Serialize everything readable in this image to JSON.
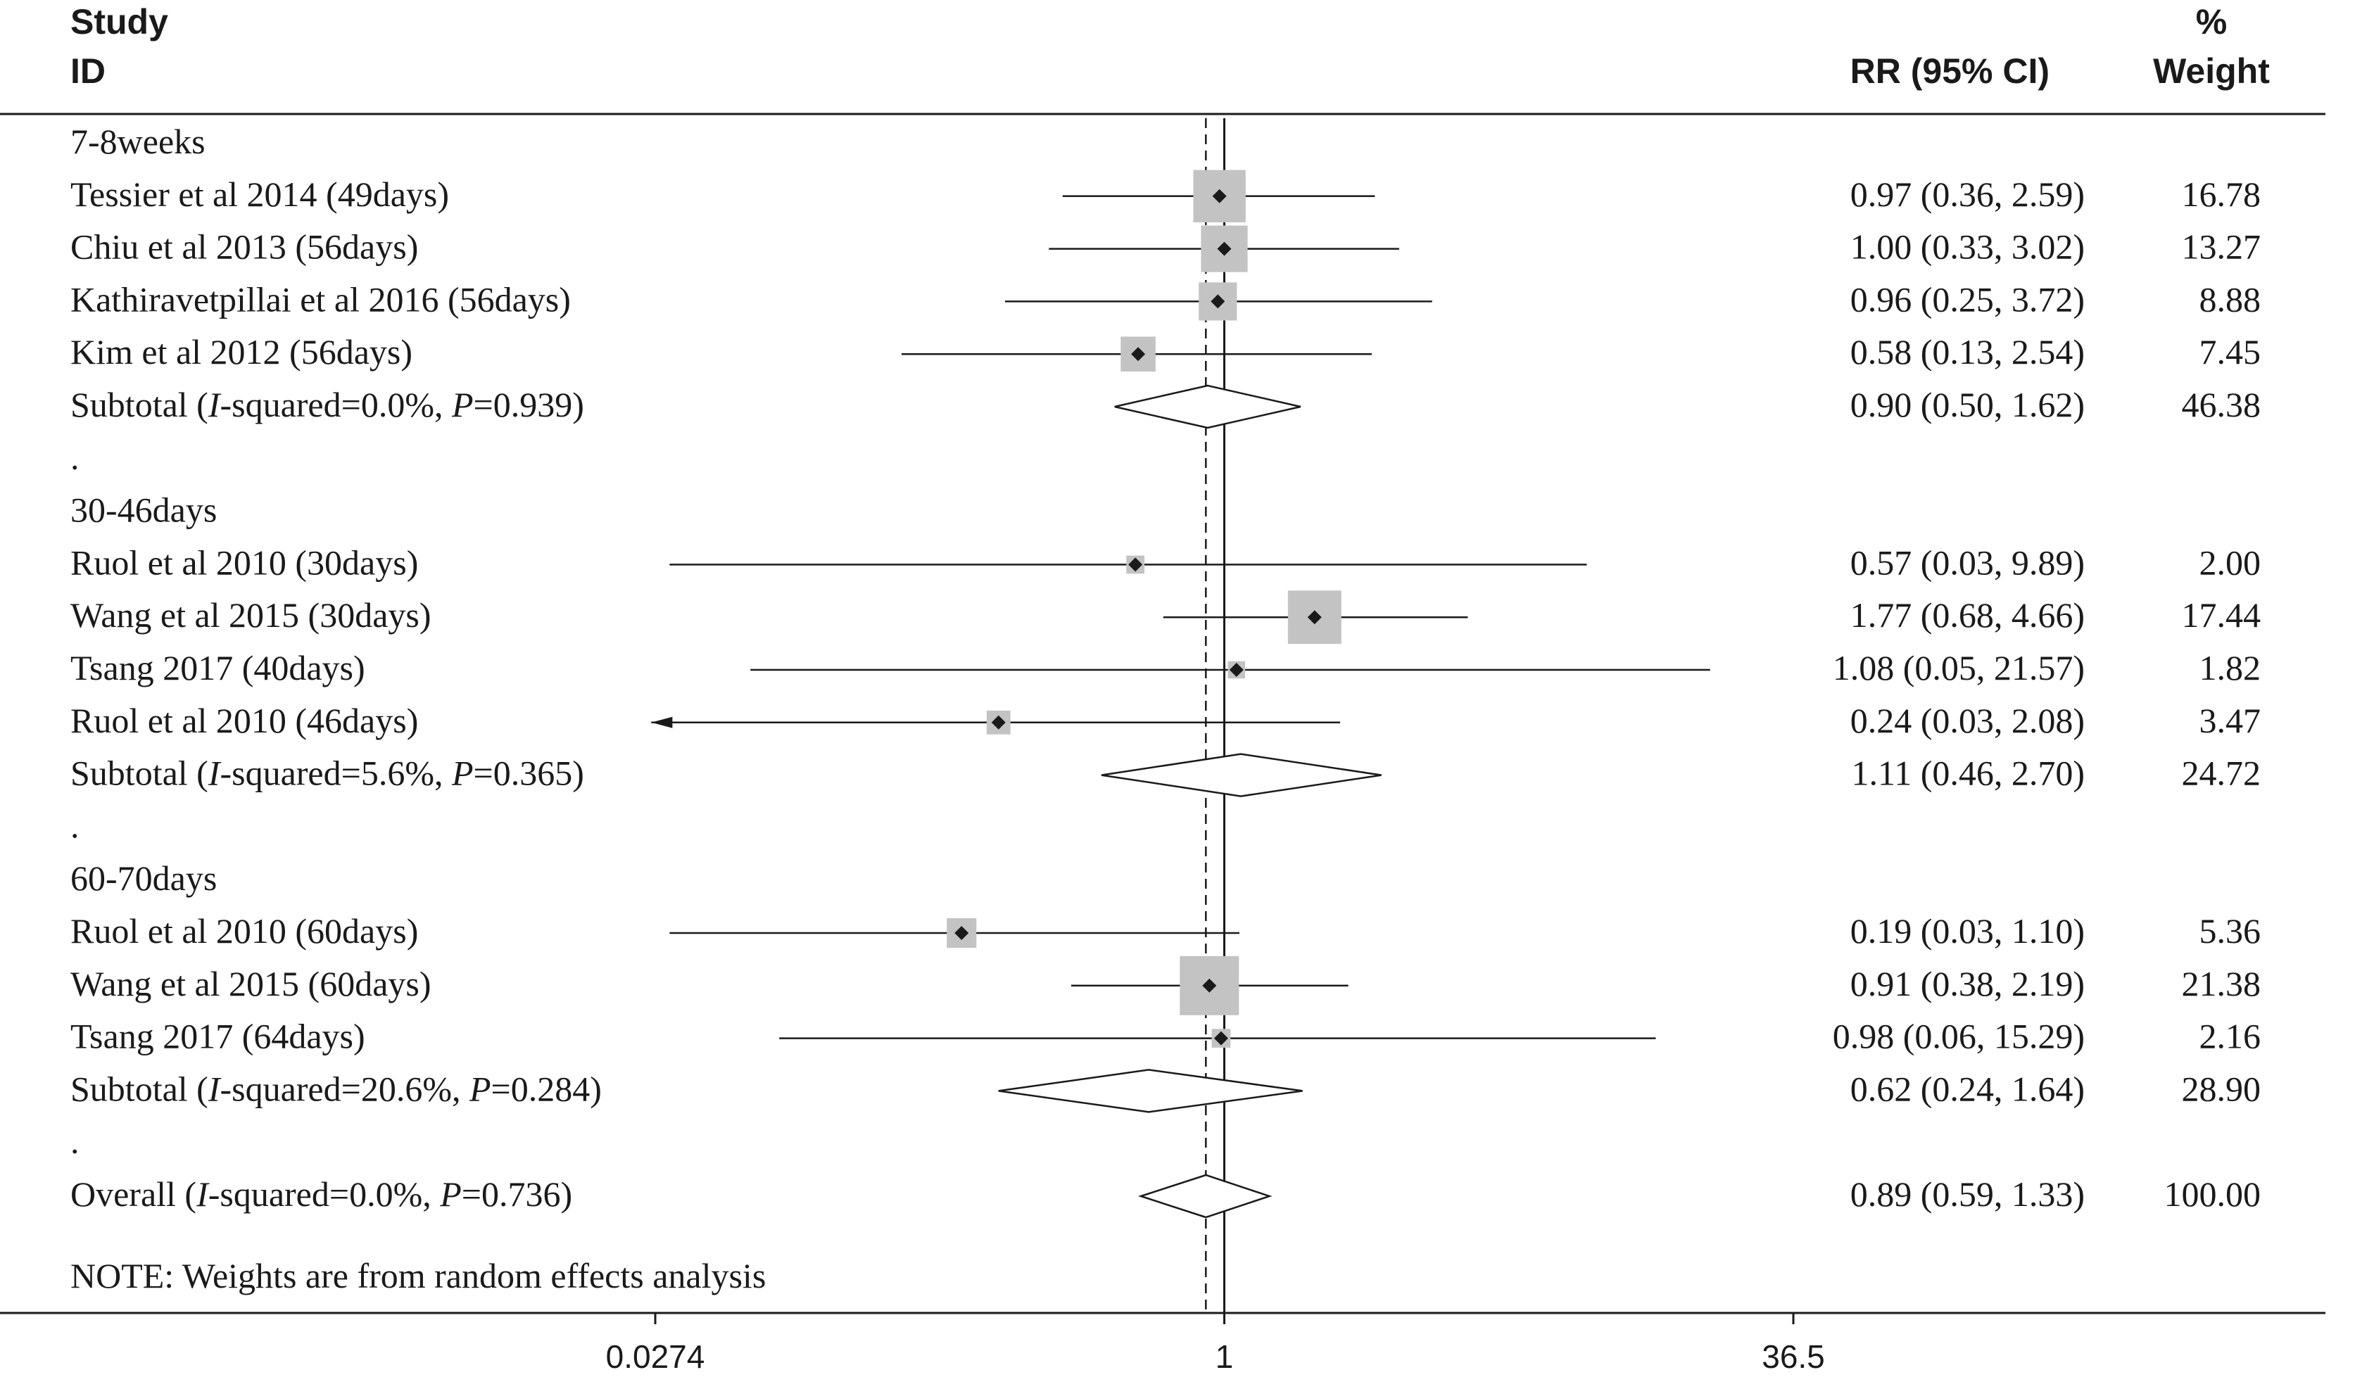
{
  "chart_data": {
    "type": "forest",
    "header": {
      "study": "Study",
      "id": "ID",
      "estimate": "RR (95% CI)",
      "weight_pct": "%",
      "weight": "Weight"
    },
    "x_scale": "log",
    "xlim": [
      0.0274,
      36.5
    ],
    "x_ticks": [
      "0.0274",
      "1",
      "36.5"
    ],
    "null_line": 1,
    "overall_line": 0.89,
    "rows": [
      {
        "kind": "group",
        "label": "7-8weeks"
      },
      {
        "kind": "study",
        "label": "Tessier et al 2014 (49days)",
        "rr": 0.97,
        "lo": 0.36,
        "hi": 2.59,
        "ci_text": "0.97 (0.36, 2.59)",
        "weight": 16.78,
        "weight_text": "16.78"
      },
      {
        "kind": "study",
        "label": "Chiu et al 2013 (56days)",
        "rr": 1.0,
        "lo": 0.33,
        "hi": 3.02,
        "ci_text": "1.00 (0.33, 3.02)",
        "weight": 13.27,
        "weight_text": "13.27"
      },
      {
        "kind": "study",
        "label": "Kathiravetpillai et al 2016 (56days)",
        "rr": 0.96,
        "lo": 0.25,
        "hi": 3.72,
        "ci_text": "0.96 (0.25, 3.72)",
        "weight": 8.88,
        "weight_text": "8.88"
      },
      {
        "kind": "study",
        "label": "Kim et al 2012 (56days)",
        "rr": 0.58,
        "lo": 0.13,
        "hi": 2.54,
        "ci_text": "0.58 (0.13, 2.54)",
        "weight": 7.45,
        "weight_text": "7.45"
      },
      {
        "kind": "subtotal",
        "label": "Subtotal",
        "i2_var": "I",
        "i2_text": "-squared=0.0%, ",
        "p_var": "P",
        "p_text": "=0.939",
        "rr": 0.9,
        "lo": 0.5,
        "hi": 1.62,
        "ci_text": "0.90 (0.50, 1.62)",
        "weight_text": "46.38"
      },
      {
        "kind": "spacer",
        "label": "."
      },
      {
        "kind": "group",
        "label": "30-46days"
      },
      {
        "kind": "study",
        "label": "Ruol et al 2010 (30days)",
        "rr": 0.57,
        "lo": 0.03,
        "hi": 9.89,
        "ci_text": "0.57 (0.03, 9.89)",
        "weight": 2.0,
        "weight_text": "2.00"
      },
      {
        "kind": "study",
        "label": "Wang et al 2015 (30days)",
        "rr": 1.77,
        "lo": 0.68,
        "hi": 4.66,
        "ci_text": "1.77 (0.68, 4.66)",
        "weight": 17.44,
        "weight_text": "17.44"
      },
      {
        "kind": "study",
        "label": "Tsang 2017 (40days)",
        "rr": 1.08,
        "lo": 0.05,
        "hi": 21.57,
        "ci_text": "1.08 (0.05, 21.57)",
        "weight": 1.82,
        "weight_text": "1.82"
      },
      {
        "kind": "study",
        "label": "Ruol et al 2010 (46days)",
        "rr": 0.24,
        "lo": 0.03,
        "hi": 2.08,
        "ci_text": "0.24 (0.03, 2.08)",
        "weight": 3.47,
        "weight_text": "3.47",
        "left_arrow": true
      },
      {
        "kind": "subtotal",
        "label": "Subtotal",
        "i2_var": "I",
        "i2_text": "-squared=5.6%, ",
        "p_var": "P",
        "p_text": "=0.365",
        "rr": 1.11,
        "lo": 0.46,
        "hi": 2.7,
        "ci_text": "1.11 (0.46, 2.70)",
        "weight_text": "24.72"
      },
      {
        "kind": "spacer",
        "label": "."
      },
      {
        "kind": "group",
        "label": "60-70days"
      },
      {
        "kind": "study",
        "label": "Ruol et al 2010 (60days)",
        "rr": 0.19,
        "lo": 0.03,
        "hi": 1.1,
        "ci_text": "0.19 (0.03, 1.10)",
        "weight": 5.36,
        "weight_text": "5.36"
      },
      {
        "kind": "study",
        "label": "Wang et al 2015 (60days)",
        "rr": 0.91,
        "lo": 0.38,
        "hi": 2.19,
        "ci_text": "0.91 (0.38, 2.19)",
        "weight": 21.38,
        "weight_text": "21.38"
      },
      {
        "kind": "study",
        "label": "Tsang 2017 (64days)",
        "rr": 0.98,
        "lo": 0.06,
        "hi": 15.29,
        "ci_text": "0.98 (0.06, 15.29)",
        "weight": 2.16,
        "weight_text": "2.16"
      },
      {
        "kind": "subtotal",
        "label": "Subtotal",
        "i2_var": "I",
        "i2_text": "-squared=20.6%, ",
        "p_var": "P",
        "p_text": "=0.284",
        "rr": 0.62,
        "lo": 0.24,
        "hi": 1.64,
        "ci_text": "0.62 (0.24, 1.64)",
        "weight_text": "28.90"
      },
      {
        "kind": "spacer",
        "label": "."
      },
      {
        "kind": "overall",
        "label": "Overall",
        "i2_var": "I",
        "i2_text": "-squared=0.0%, ",
        "p_var": "P",
        "p_text": "=0.736",
        "rr": 0.89,
        "lo": 0.59,
        "hi": 1.33,
        "ci_text": "0.89 (0.59, 1.33)",
        "weight_text": "100.00"
      }
    ],
    "note": "NOTE: Weights are from random effects analysis",
    "colors": {
      "box": "#c3c3c3",
      "line": "#1a1a1a",
      "text": "#1a1a1a"
    }
  }
}
